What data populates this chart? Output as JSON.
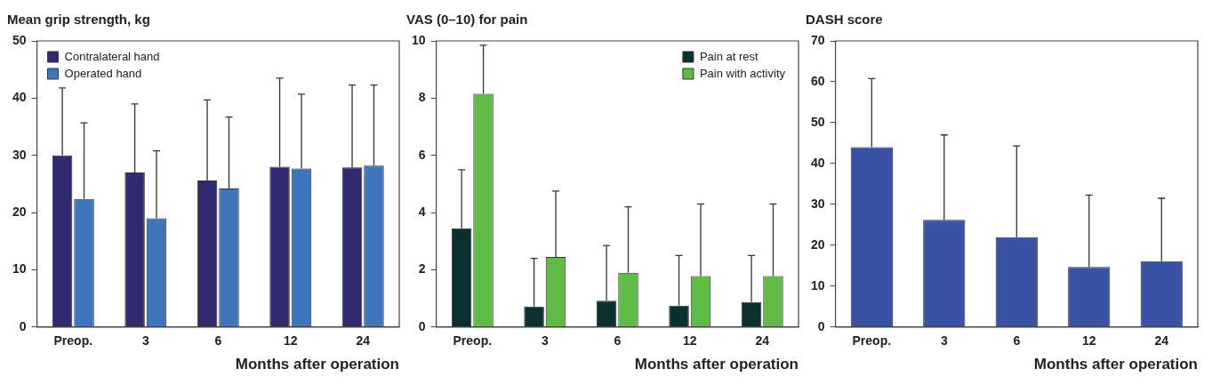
{
  "chart_data": [
    {
      "type": "bar",
      "title": "Mean grip strength, kg",
      "xlabel": "Months after operation",
      "categories": [
        "Preop.",
        "3",
        "6",
        "12",
        "24"
      ],
      "ylim": [
        0,
        50
      ],
      "yticks": [
        0,
        10,
        20,
        30,
        40,
        50
      ],
      "grid": false,
      "legend": "top left",
      "series": [
        {
          "name": "Contralateral hand",
          "color": "#312a70",
          "values": [
            30,
            27,
            25.6,
            28,
            27.9
          ],
          "errors": [
            [
              30,
              41.8
            ],
            [
              27,
              39
            ],
            [
              25.6,
              39.7
            ],
            [
              28,
              43.5
            ],
            [
              27.9,
              42.3
            ]
          ]
        },
        {
          "name": "Operated hand",
          "color": "#3f76bb",
          "values": [
            22.4,
            19,
            24.2,
            27.7,
            28.2
          ],
          "errors": [
            [
              22.4,
              35.7
            ],
            [
              19,
              30.8
            ],
            [
              24.2,
              36.7
            ],
            [
              27.7,
              40.7
            ],
            [
              28.2,
              42.3
            ]
          ]
        }
      ]
    },
    {
      "type": "bar",
      "title": "VAS (0–10) for pain",
      "xlabel": "Months after operation",
      "categories": [
        "Preop.",
        "3",
        "6",
        "12",
        "24"
      ],
      "ylim": [
        0,
        10
      ],
      "yticks": [
        0,
        2,
        4,
        6,
        8,
        10
      ],
      "grid": false,
      "legend": "top right",
      "series": [
        {
          "name": "Pain at rest",
          "color": "#0a3030",
          "values": [
            3.45,
            0.72,
            0.92,
            0.75,
            0.87
          ],
          "errors": [
            [
              3.45,
              5.5
            ],
            [
              0.72,
              2.4
            ],
            [
              0.92,
              2.85
            ],
            [
              0.75,
              2.5
            ],
            [
              0.87,
              2.5
            ]
          ]
        },
        {
          "name": "Pain with activity",
          "color": "#5fba46",
          "values": [
            8.15,
            2.45,
            1.9,
            1.78,
            1.78
          ],
          "errors": [
            [
              8.15,
              9.85
            ],
            [
              2.45,
              4.75
            ],
            [
              1.9,
              4.2
            ],
            [
              1.78,
              4.3
            ],
            [
              1.78,
              4.3
            ]
          ]
        }
      ]
    },
    {
      "type": "bar",
      "title": "DASH score",
      "xlabel": "Months after operation",
      "categories": [
        "Preop.",
        "3",
        "6",
        "12",
        "24"
      ],
      "ylim": [
        0,
        70
      ],
      "yticks": [
        0,
        10,
        20,
        30,
        40,
        50,
        60,
        70
      ],
      "grid": false,
      "legend": false,
      "series": [
        {
          "color": "#3a52a5",
          "values": [
            44,
            26.2,
            22,
            14.7,
            16.1
          ],
          "errors": [
            [
              44,
              60.8
            ],
            [
              26.2,
              47
            ],
            [
              22,
              44.3
            ],
            [
              14.7,
              32.3
            ],
            [
              16.1,
              31.5
            ]
          ]
        }
      ]
    }
  ]
}
